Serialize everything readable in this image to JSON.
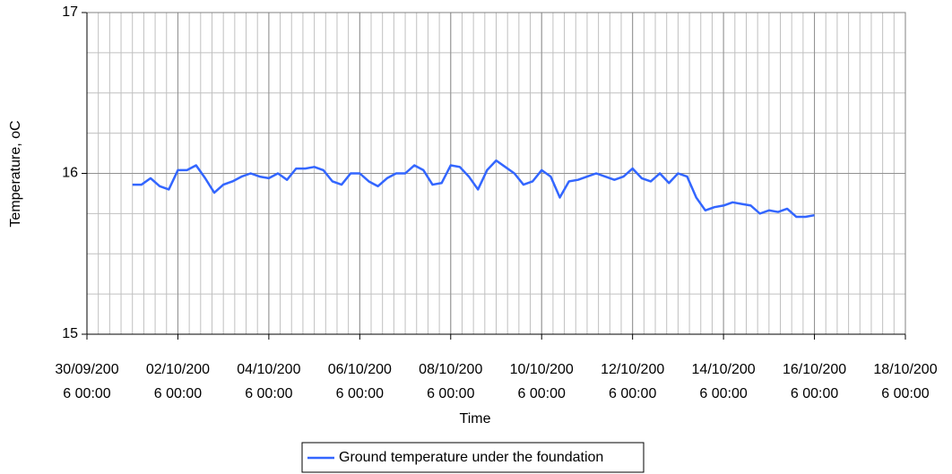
{
  "chart_data": {
    "type": "line",
    "xlabel": "Time",
    "ylabel": "Temperature, oC",
    "x": [
      1,
      1.2,
      1.4,
      1.6,
      1.8,
      2,
      2.2,
      2.4,
      2.6,
      2.8,
      3,
      3.2,
      3.4,
      3.6,
      3.8,
      4,
      4.2,
      4.4,
      4.6,
      4.8,
      5,
      5.2,
      5.4,
      5.6,
      5.8,
      6,
      6.2,
      6.4,
      6.6,
      6.8,
      7,
      7.2,
      7.4,
      7.6,
      7.8,
      8,
      8.2,
      8.4,
      8.6,
      8.8,
      9,
      9.2,
      9.4,
      9.6,
      9.8,
      10,
      10.2,
      10.4,
      10.6,
      10.8,
      11,
      11.2,
      11.4,
      11.6,
      11.8,
      12,
      12.2,
      12.4,
      12.6,
      12.8,
      13,
      13.2,
      13.4,
      13.6,
      13.8,
      14,
      14.2,
      14.4,
      14.6,
      14.8,
      15,
      15.2,
      15.4,
      15.6,
      15.8,
      16
    ],
    "series": [
      {
        "name": "Ground temperature under the foundation",
        "color": "#3366ff",
        "values": [
          15.93,
          15.93,
          15.97,
          15.92,
          15.9,
          16.02,
          16.02,
          16.05,
          15.97,
          15.88,
          15.93,
          15.95,
          15.98,
          16,
          15.98,
          15.97,
          16,
          15.96,
          16.03,
          16.03,
          16.04,
          16.02,
          15.95,
          15.93,
          16,
          16,
          15.95,
          15.92,
          15.97,
          16,
          16,
          16.05,
          16.02,
          15.93,
          15.94,
          16.05,
          16.04,
          15.98,
          15.9,
          16.02,
          16.08,
          16.04,
          16,
          15.93,
          15.95,
          16.02,
          15.98,
          15.85,
          15.95,
          15.96,
          15.98,
          16,
          15.98,
          15.96,
          15.98,
          16.03,
          15.97,
          15.95,
          16,
          15.94,
          16,
          15.98,
          15.85,
          15.77,
          15.79,
          15.8,
          15.82,
          15.81,
          15.8,
          15.75,
          15.77,
          15.76,
          15.78,
          15.73,
          15.73,
          15.74
        ]
      }
    ],
    "xlim": [
      0,
      18
    ],
    "xticks": [
      {
        "value": 0,
        "label": "30/09/2006 00:00"
      },
      {
        "value": 2,
        "label": "02/10/2006 00:00"
      },
      {
        "value": 4,
        "label": "04/10/2006 00:00"
      },
      {
        "value": 6,
        "label": "06/10/2006 00:00"
      },
      {
        "value": 8,
        "label": "08/10/2006 00:00"
      },
      {
        "value": 10,
        "label": "10/10/2006 00:00"
      },
      {
        "value": 12,
        "label": "12/10/2006 00:00"
      },
      {
        "value": 14,
        "label": "14/10/2006 00:00"
      },
      {
        "value": 16,
        "label": "16/10/2006 00:00"
      },
      {
        "value": 18,
        "label": "18/10/2006 00:00"
      }
    ],
    "ylim": [
      15,
      17
    ],
    "yticks": [
      15,
      16,
      17
    ],
    "grid": true,
    "minor_grid_step": {
      "x": 0.25,
      "y": 0.25
    },
    "legend": "bottom"
  }
}
